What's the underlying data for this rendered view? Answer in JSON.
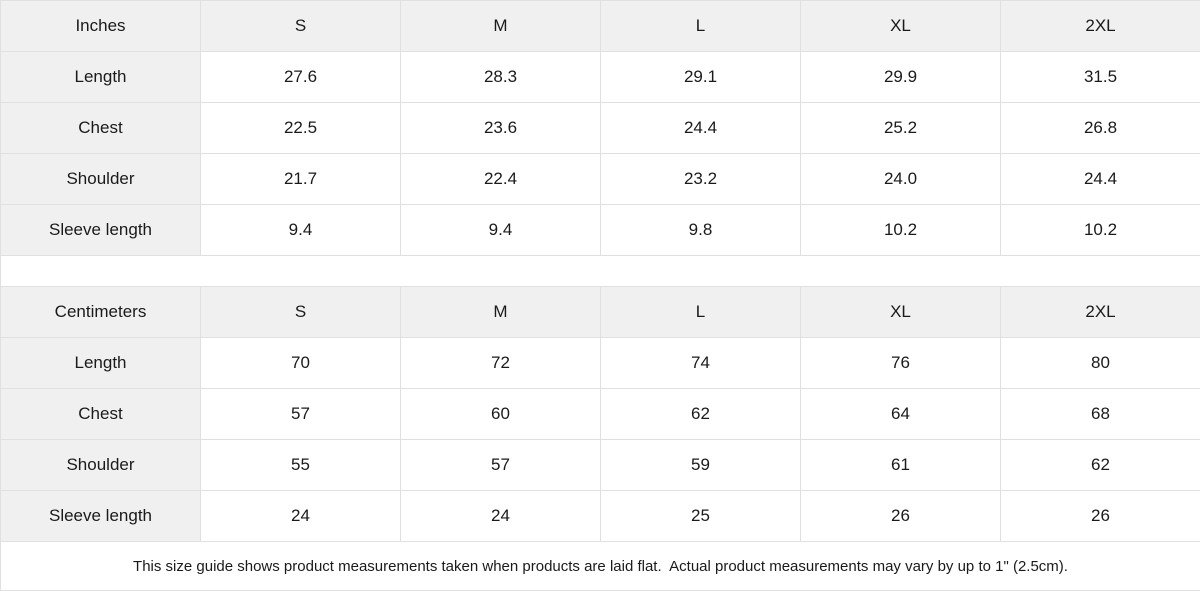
{
  "colors": {
    "header_bg": "#f0f0f0",
    "border": "#e0e0e0",
    "text": "#1a1a1a",
    "background": "#ffffff"
  },
  "tables": [
    {
      "unit_label": "Inches",
      "sizes": [
        "S",
        "M",
        "L",
        "XL",
        "2XL"
      ],
      "rows": [
        {
          "label": "Length",
          "values": [
            "27.6",
            "28.3",
            "29.1",
            "29.9",
            "31.5"
          ]
        },
        {
          "label": "Chest",
          "values": [
            "22.5",
            "23.6",
            "24.4",
            "25.2",
            "26.8"
          ]
        },
        {
          "label": "Shoulder",
          "values": [
            "21.7",
            "22.4",
            "23.2",
            "24.0",
            "24.4"
          ]
        },
        {
          "label": "Sleeve length",
          "values": [
            "9.4",
            "9.4",
            "9.8",
            "10.2",
            "10.2"
          ]
        }
      ]
    },
    {
      "unit_label": "Centimeters",
      "sizes": [
        "S",
        "M",
        "L",
        "XL",
        "2XL"
      ],
      "rows": [
        {
          "label": "Length",
          "values": [
            "70",
            "72",
            "74",
            "76",
            "80"
          ]
        },
        {
          "label": "Chest",
          "values": [
            "57",
            "60",
            "62",
            "64",
            "68"
          ]
        },
        {
          "label": "Shoulder",
          "values": [
            "55",
            "57",
            "59",
            "61",
            "62"
          ]
        },
        {
          "label": "Sleeve length",
          "values": [
            "24",
            "24",
            "25",
            "26",
            "26"
          ]
        }
      ]
    }
  ],
  "footer": {
    "note": "This size guide shows product measurements taken when products are laid flat.  Actual product measurements may vary by up to 1\" (2.5cm)."
  },
  "chart_data": [
    {
      "type": "table",
      "title": "Size guide (Inches)",
      "columns": [
        "Inches",
        "S",
        "M",
        "L",
        "XL",
        "2XL"
      ],
      "rows": [
        [
          "Length",
          27.6,
          28.3,
          29.1,
          29.9,
          31.5
        ],
        [
          "Chest",
          22.5,
          23.6,
          24.4,
          25.2,
          26.8
        ],
        [
          "Shoulder",
          21.7,
          22.4,
          23.2,
          24.0,
          24.4
        ],
        [
          "Sleeve length",
          9.4,
          9.4,
          9.8,
          10.2,
          10.2
        ]
      ]
    },
    {
      "type": "table",
      "title": "Size guide (Centimeters)",
      "columns": [
        "Centimeters",
        "S",
        "M",
        "L",
        "XL",
        "2XL"
      ],
      "rows": [
        [
          "Length",
          70,
          72,
          74,
          76,
          80
        ],
        [
          "Chest",
          57,
          60,
          62,
          64,
          68
        ],
        [
          "Shoulder",
          55,
          57,
          59,
          61,
          62
        ],
        [
          "Sleeve length",
          24,
          24,
          25,
          26,
          26
        ]
      ]
    }
  ]
}
